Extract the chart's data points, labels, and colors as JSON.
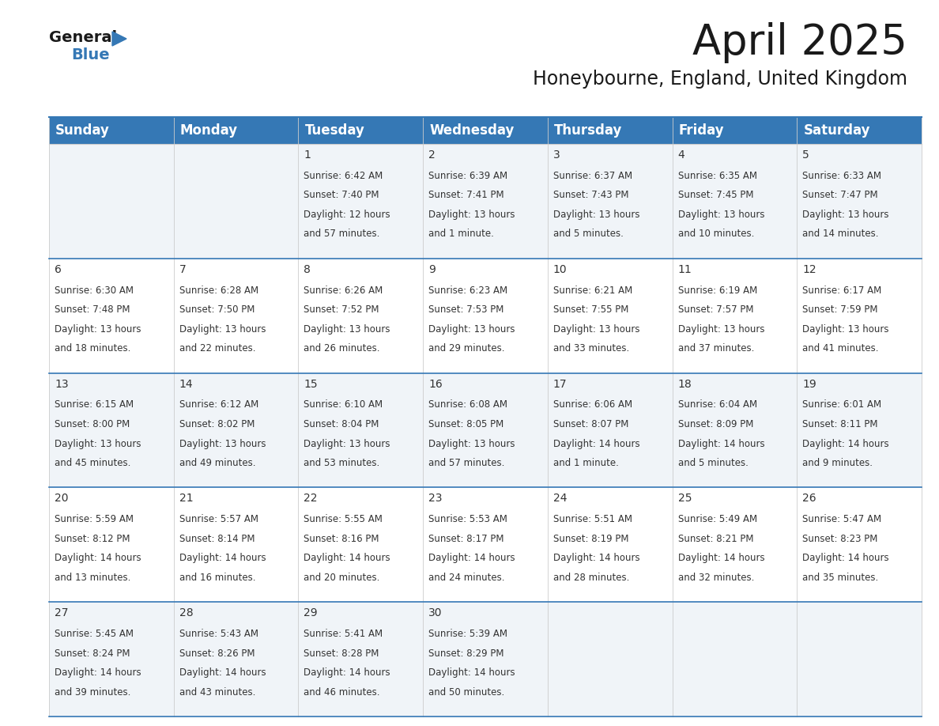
{
  "title": "April 2025",
  "subtitle": "Honeybourne, England, United Kingdom",
  "header_bg": "#3578b5",
  "header_text_color": "#ffffff",
  "border_color": "#3578b5",
  "day_headers": [
    "Sunday",
    "Monday",
    "Tuesday",
    "Wednesday",
    "Thursday",
    "Friday",
    "Saturday"
  ],
  "days": [
    {
      "day": 1,
      "col": 2,
      "row": 0,
      "sunrise": "6:42 AM",
      "sunset": "7:40 PM",
      "daylight_line1": "Daylight: 12 hours",
      "daylight_line2": "and 57 minutes."
    },
    {
      "day": 2,
      "col": 3,
      "row": 0,
      "sunrise": "6:39 AM",
      "sunset": "7:41 PM",
      "daylight_line1": "Daylight: 13 hours",
      "daylight_line2": "and 1 minute."
    },
    {
      "day": 3,
      "col": 4,
      "row": 0,
      "sunrise": "6:37 AM",
      "sunset": "7:43 PM",
      "daylight_line1": "Daylight: 13 hours",
      "daylight_line2": "and 5 minutes."
    },
    {
      "day": 4,
      "col": 5,
      "row": 0,
      "sunrise": "6:35 AM",
      "sunset": "7:45 PM",
      "daylight_line1": "Daylight: 13 hours",
      "daylight_line2": "and 10 minutes."
    },
    {
      "day": 5,
      "col": 6,
      "row": 0,
      "sunrise": "6:33 AM",
      "sunset": "7:47 PM",
      "daylight_line1": "Daylight: 13 hours",
      "daylight_line2": "and 14 minutes."
    },
    {
      "day": 6,
      "col": 0,
      "row": 1,
      "sunrise": "6:30 AM",
      "sunset": "7:48 PM",
      "daylight_line1": "Daylight: 13 hours",
      "daylight_line2": "and 18 minutes."
    },
    {
      "day": 7,
      "col": 1,
      "row": 1,
      "sunrise": "6:28 AM",
      "sunset": "7:50 PM",
      "daylight_line1": "Daylight: 13 hours",
      "daylight_line2": "and 22 minutes."
    },
    {
      "day": 8,
      "col": 2,
      "row": 1,
      "sunrise": "6:26 AM",
      "sunset": "7:52 PM",
      "daylight_line1": "Daylight: 13 hours",
      "daylight_line2": "and 26 minutes."
    },
    {
      "day": 9,
      "col": 3,
      "row": 1,
      "sunrise": "6:23 AM",
      "sunset": "7:53 PM",
      "daylight_line1": "Daylight: 13 hours",
      "daylight_line2": "and 29 minutes."
    },
    {
      "day": 10,
      "col": 4,
      "row": 1,
      "sunrise": "6:21 AM",
      "sunset": "7:55 PM",
      "daylight_line1": "Daylight: 13 hours",
      "daylight_line2": "and 33 minutes."
    },
    {
      "day": 11,
      "col": 5,
      "row": 1,
      "sunrise": "6:19 AM",
      "sunset": "7:57 PM",
      "daylight_line1": "Daylight: 13 hours",
      "daylight_line2": "and 37 minutes."
    },
    {
      "day": 12,
      "col": 6,
      "row": 1,
      "sunrise": "6:17 AM",
      "sunset": "7:59 PM",
      "daylight_line1": "Daylight: 13 hours",
      "daylight_line2": "and 41 minutes."
    },
    {
      "day": 13,
      "col": 0,
      "row": 2,
      "sunrise": "6:15 AM",
      "sunset": "8:00 PM",
      "daylight_line1": "Daylight: 13 hours",
      "daylight_line2": "and 45 minutes."
    },
    {
      "day": 14,
      "col": 1,
      "row": 2,
      "sunrise": "6:12 AM",
      "sunset": "8:02 PM",
      "daylight_line1": "Daylight: 13 hours",
      "daylight_line2": "and 49 minutes."
    },
    {
      "day": 15,
      "col": 2,
      "row": 2,
      "sunrise": "6:10 AM",
      "sunset": "8:04 PM",
      "daylight_line1": "Daylight: 13 hours",
      "daylight_line2": "and 53 minutes."
    },
    {
      "day": 16,
      "col": 3,
      "row": 2,
      "sunrise": "6:08 AM",
      "sunset": "8:05 PM",
      "daylight_line1": "Daylight: 13 hours",
      "daylight_line2": "and 57 minutes."
    },
    {
      "day": 17,
      "col": 4,
      "row": 2,
      "sunrise": "6:06 AM",
      "sunset": "8:07 PM",
      "daylight_line1": "Daylight: 14 hours",
      "daylight_line2": "and 1 minute."
    },
    {
      "day": 18,
      "col": 5,
      "row": 2,
      "sunrise": "6:04 AM",
      "sunset": "8:09 PM",
      "daylight_line1": "Daylight: 14 hours",
      "daylight_line2": "and 5 minutes."
    },
    {
      "day": 19,
      "col": 6,
      "row": 2,
      "sunrise": "6:01 AM",
      "sunset": "8:11 PM",
      "daylight_line1": "Daylight: 14 hours",
      "daylight_line2": "and 9 minutes."
    },
    {
      "day": 20,
      "col": 0,
      "row": 3,
      "sunrise": "5:59 AM",
      "sunset": "8:12 PM",
      "daylight_line1": "Daylight: 14 hours",
      "daylight_line2": "and 13 minutes."
    },
    {
      "day": 21,
      "col": 1,
      "row": 3,
      "sunrise": "5:57 AM",
      "sunset": "8:14 PM",
      "daylight_line1": "Daylight: 14 hours",
      "daylight_line2": "and 16 minutes."
    },
    {
      "day": 22,
      "col": 2,
      "row": 3,
      "sunrise": "5:55 AM",
      "sunset": "8:16 PM",
      "daylight_line1": "Daylight: 14 hours",
      "daylight_line2": "and 20 minutes."
    },
    {
      "day": 23,
      "col": 3,
      "row": 3,
      "sunrise": "5:53 AM",
      "sunset": "8:17 PM",
      "daylight_line1": "Daylight: 14 hours",
      "daylight_line2": "and 24 minutes."
    },
    {
      "day": 24,
      "col": 4,
      "row": 3,
      "sunrise": "5:51 AM",
      "sunset": "8:19 PM",
      "daylight_line1": "Daylight: 14 hours",
      "daylight_line2": "and 28 minutes."
    },
    {
      "day": 25,
      "col": 5,
      "row": 3,
      "sunrise": "5:49 AM",
      "sunset": "8:21 PM",
      "daylight_line1": "Daylight: 14 hours",
      "daylight_line2": "and 32 minutes."
    },
    {
      "day": 26,
      "col": 6,
      "row": 3,
      "sunrise": "5:47 AM",
      "sunset": "8:23 PM",
      "daylight_line1": "Daylight: 14 hours",
      "daylight_line2": "and 35 minutes."
    },
    {
      "day": 27,
      "col": 0,
      "row": 4,
      "sunrise": "5:45 AM",
      "sunset": "8:24 PM",
      "daylight_line1": "Daylight: 14 hours",
      "daylight_line2": "and 39 minutes."
    },
    {
      "day": 28,
      "col": 1,
      "row": 4,
      "sunrise": "5:43 AM",
      "sunset": "8:26 PM",
      "daylight_line1": "Daylight: 14 hours",
      "daylight_line2": "and 43 minutes."
    },
    {
      "day": 29,
      "col": 2,
      "row": 4,
      "sunrise": "5:41 AM",
      "sunset": "8:28 PM",
      "daylight_line1": "Daylight: 14 hours",
      "daylight_line2": "and 46 minutes."
    },
    {
      "day": 30,
      "col": 3,
      "row": 4,
      "sunrise": "5:39 AM",
      "sunset": "8:29 PM",
      "daylight_line1": "Daylight: 14 hours",
      "daylight_line2": "and 50 minutes."
    }
  ],
  "num_rows": 5,
  "num_cols": 7,
  "bg_color": "#ffffff",
  "text_color": "#1a1a1a",
  "cell_text_color": "#333333",
  "title_fontsize": 38,
  "subtitle_fontsize": 17,
  "header_fontsize": 12,
  "day_num_fontsize": 10,
  "cell_fontsize": 8.5,
  "logo_general_color": "#1a1a1a",
  "logo_blue_color": "#3578b5",
  "logo_triangle_color": "#3578b5"
}
